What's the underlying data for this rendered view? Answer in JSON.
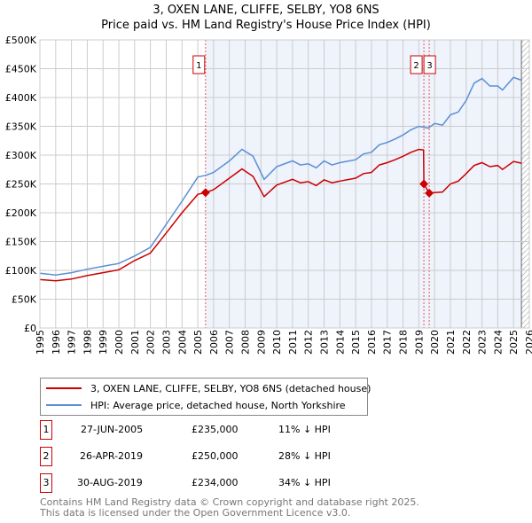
{
  "title_line1": "3, OXEN LANE, CLIFFE, SELBY, YO8 6NS",
  "title_line2": "Price paid vs. HM Land Registry's House Price Index (HPI)",
  "chart_data": {
    "type": "line",
    "title": "3, OXEN LANE, CLIFFE, SELBY, YO8 6NS — Price paid vs. HM Land Registry's House Price Index (HPI)",
    "xlim": [
      1995,
      2026
    ],
    "ylim": [
      0,
      500000
    ],
    "x_ticks": [
      "1995",
      "1996",
      "1997",
      "1998",
      "1999",
      "2000",
      "2001",
      "2002",
      "2003",
      "2004",
      "2005",
      "2006",
      "2007",
      "2008",
      "2009",
      "2010",
      "2011",
      "2012",
      "2013",
      "2014",
      "2015",
      "2016",
      "2017",
      "2018",
      "2019",
      "2020",
      "2021",
      "2022",
      "2023",
      "2024",
      "2025",
      "2026"
    ],
    "y_ticks": [
      {
        "v": 0,
        "l": "£0"
      },
      {
        "v": 50000,
        "l": "£50K"
      },
      {
        "v": 100000,
        "l": "£100K"
      },
      {
        "v": 150000,
        "l": "£150K"
      },
      {
        "v": 200000,
        "l": "£200K"
      },
      {
        "v": 250000,
        "l": "£250K"
      },
      {
        "v": 300000,
        "l": "£300K"
      },
      {
        "v": 350000,
        "l": "£350K"
      },
      {
        "v": 400000,
        "l": "£400K"
      },
      {
        "v": 450000,
        "l": "£450K"
      },
      {
        "v": 500000,
        "l": "£500K"
      }
    ],
    "grid": true,
    "series": [
      {
        "name": "3, OXEN LANE, CLIFFE, SELBY, YO8 6NS (detached house)",
        "color": "#cc0000",
        "x": [
          1995,
          1996,
          1997,
          1998,
          1999,
          2000,
          2001,
          2002,
          2003,
          2004,
          2005,
          2005.49,
          2006,
          2007,
          2007.8,
          2008.5,
          2009.2,
          2010,
          2011,
          2011.5,
          2012,
          2012.5,
          2013,
          2013.5,
          2014,
          2015,
          2015.5,
          2016,
          2016.5,
          2017,
          2017.5,
          2018,
          2018.5,
          2019,
          2019.3,
          2019.32,
          2019.66,
          2020,
          2020.5,
          2021,
          2021.5,
          2022,
          2022.5,
          2023,
          2023.5,
          2024,
          2024.3,
          2025,
          2025.5
        ],
        "y": [
          84,
          82,
          85,
          91,
          96,
          101,
          117,
          130,
          165,
          200,
          232,
          235,
          240,
          260,
          276,
          263,
          228,
          248,
          258,
          252,
          254,
          247,
          257,
          252,
          255,
          260,
          268,
          270,
          283,
          287,
          292,
          298,
          305,
          310,
          309,
          250,
          234,
          235,
          236,
          250,
          255,
          268,
          282,
          287,
          280,
          282,
          275,
          289,
          286
        ]
      },
      {
        "name": "HPI: Average price, detached house, North Yorkshire",
        "color": "#5b8fd4",
        "x": [
          1995,
          1996,
          1997,
          1998,
          1999,
          2000,
          2001,
          2002,
          2003,
          2004,
          2005,
          2005.5,
          2006,
          2007,
          2007.8,
          2008.5,
          2009.2,
          2010,
          2011,
          2011.5,
          2012,
          2012.5,
          2013,
          2013.5,
          2014,
          2015,
          2015.5,
          2016,
          2016.5,
          2017,
          2017.5,
          2018,
          2018.5,
          2019,
          2019.6,
          2020,
          2020.5,
          2021,
          2021.5,
          2022,
          2022.5,
          2023,
          2023.5,
          2024,
          2024.3,
          2025,
          2025.5
        ],
        "y": [
          95,
          92,
          96,
          102,
          107,
          112,
          125,
          140,
          180,
          220,
          262,
          265,
          270,
          290,
          310,
          298,
          258,
          280,
          290,
          283,
          285,
          278,
          290,
          283,
          287,
          292,
          302,
          305,
          318,
          322,
          328,
          335,
          344,
          350,
          347,
          355,
          352,
          370,
          375,
          395,
          425,
          433,
          420,
          420,
          413,
          435,
          430
        ]
      }
    ],
    "y_unit": "thousands GBP",
    "shaded_range": [
      2005.49,
      2025.5
    ],
    "hatched_from": 2025.5,
    "sales": [
      {
        "label": "1",
        "x": 2005.49,
        "y": 235
      },
      {
        "label": "2",
        "x": 2019.32,
        "y": 250
      },
      {
        "label": "3",
        "x": 2019.66,
        "y": 234
      }
    ]
  },
  "legend": [
    {
      "label": "3, OXEN LANE, CLIFFE, SELBY, YO8 6NS (detached house)",
      "color": "#cc0000"
    },
    {
      "label": "HPI: Average price, detached house, North Yorkshire",
      "color": "#5b8fd4"
    }
  ],
  "transactions": [
    {
      "num": "1",
      "date": "27-JUN-2005",
      "price": "£235,000",
      "diff": "11% ↓ HPI"
    },
    {
      "num": "2",
      "date": "26-APR-2019",
      "price": "£250,000",
      "diff": "28% ↓ HPI"
    },
    {
      "num": "3",
      "date": "30-AUG-2019",
      "price": "£234,000",
      "diff": "34% ↓ HPI"
    }
  ],
  "footer_line1": "Contains HM Land Registry data © Crown copyright and database right 2025.",
  "footer_line2": "This data is licensed under the Open Government Licence v3.0."
}
